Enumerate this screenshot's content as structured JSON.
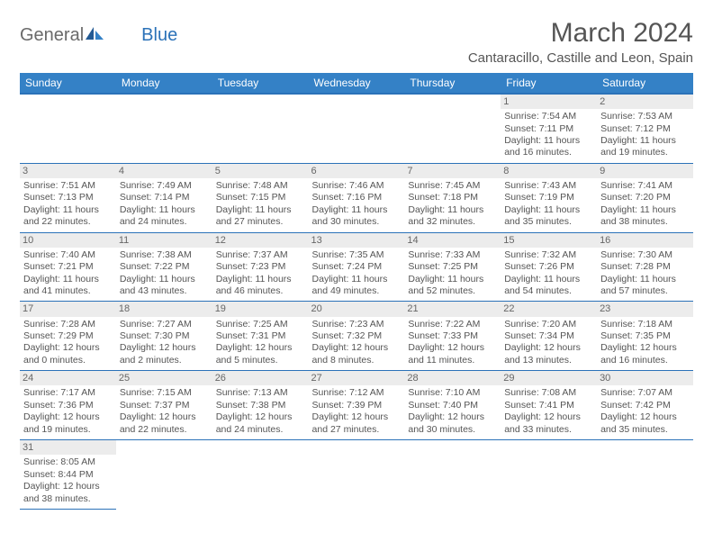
{
  "logo": {
    "part1": "General",
    "part2": "Blue"
  },
  "title": "March 2024",
  "subtitle": "Cantaracillo, Castille and Leon, Spain",
  "colors": {
    "header_bg": "#3481c6",
    "header_border": "#2b72b8",
    "daynum_bg": "#ececec",
    "text": "#555555"
  },
  "weekdays": [
    "Sunday",
    "Monday",
    "Tuesday",
    "Wednesday",
    "Thursday",
    "Friday",
    "Saturday"
  ],
  "weeks": [
    [
      null,
      null,
      null,
      null,
      null,
      {
        "n": "1",
        "sunrise": "Sunrise: 7:54 AM",
        "sunset": "Sunset: 7:11 PM",
        "daylight": "Daylight: 11 hours and 16 minutes."
      },
      {
        "n": "2",
        "sunrise": "Sunrise: 7:53 AM",
        "sunset": "Sunset: 7:12 PM",
        "daylight": "Daylight: 11 hours and 19 minutes."
      }
    ],
    [
      {
        "n": "3",
        "sunrise": "Sunrise: 7:51 AM",
        "sunset": "Sunset: 7:13 PM",
        "daylight": "Daylight: 11 hours and 22 minutes."
      },
      {
        "n": "4",
        "sunrise": "Sunrise: 7:49 AM",
        "sunset": "Sunset: 7:14 PM",
        "daylight": "Daylight: 11 hours and 24 minutes."
      },
      {
        "n": "5",
        "sunrise": "Sunrise: 7:48 AM",
        "sunset": "Sunset: 7:15 PM",
        "daylight": "Daylight: 11 hours and 27 minutes."
      },
      {
        "n": "6",
        "sunrise": "Sunrise: 7:46 AM",
        "sunset": "Sunset: 7:16 PM",
        "daylight": "Daylight: 11 hours and 30 minutes."
      },
      {
        "n": "7",
        "sunrise": "Sunrise: 7:45 AM",
        "sunset": "Sunset: 7:18 PM",
        "daylight": "Daylight: 11 hours and 32 minutes."
      },
      {
        "n": "8",
        "sunrise": "Sunrise: 7:43 AM",
        "sunset": "Sunset: 7:19 PM",
        "daylight": "Daylight: 11 hours and 35 minutes."
      },
      {
        "n": "9",
        "sunrise": "Sunrise: 7:41 AM",
        "sunset": "Sunset: 7:20 PM",
        "daylight": "Daylight: 11 hours and 38 minutes."
      }
    ],
    [
      {
        "n": "10",
        "sunrise": "Sunrise: 7:40 AM",
        "sunset": "Sunset: 7:21 PM",
        "daylight": "Daylight: 11 hours and 41 minutes."
      },
      {
        "n": "11",
        "sunrise": "Sunrise: 7:38 AM",
        "sunset": "Sunset: 7:22 PM",
        "daylight": "Daylight: 11 hours and 43 minutes."
      },
      {
        "n": "12",
        "sunrise": "Sunrise: 7:37 AM",
        "sunset": "Sunset: 7:23 PM",
        "daylight": "Daylight: 11 hours and 46 minutes."
      },
      {
        "n": "13",
        "sunrise": "Sunrise: 7:35 AM",
        "sunset": "Sunset: 7:24 PM",
        "daylight": "Daylight: 11 hours and 49 minutes."
      },
      {
        "n": "14",
        "sunrise": "Sunrise: 7:33 AM",
        "sunset": "Sunset: 7:25 PM",
        "daylight": "Daylight: 11 hours and 52 minutes."
      },
      {
        "n": "15",
        "sunrise": "Sunrise: 7:32 AM",
        "sunset": "Sunset: 7:26 PM",
        "daylight": "Daylight: 11 hours and 54 minutes."
      },
      {
        "n": "16",
        "sunrise": "Sunrise: 7:30 AM",
        "sunset": "Sunset: 7:28 PM",
        "daylight": "Daylight: 11 hours and 57 minutes."
      }
    ],
    [
      {
        "n": "17",
        "sunrise": "Sunrise: 7:28 AM",
        "sunset": "Sunset: 7:29 PM",
        "daylight": "Daylight: 12 hours and 0 minutes."
      },
      {
        "n": "18",
        "sunrise": "Sunrise: 7:27 AM",
        "sunset": "Sunset: 7:30 PM",
        "daylight": "Daylight: 12 hours and 2 minutes."
      },
      {
        "n": "19",
        "sunrise": "Sunrise: 7:25 AM",
        "sunset": "Sunset: 7:31 PM",
        "daylight": "Daylight: 12 hours and 5 minutes."
      },
      {
        "n": "20",
        "sunrise": "Sunrise: 7:23 AM",
        "sunset": "Sunset: 7:32 PM",
        "daylight": "Daylight: 12 hours and 8 minutes."
      },
      {
        "n": "21",
        "sunrise": "Sunrise: 7:22 AM",
        "sunset": "Sunset: 7:33 PM",
        "daylight": "Daylight: 12 hours and 11 minutes."
      },
      {
        "n": "22",
        "sunrise": "Sunrise: 7:20 AM",
        "sunset": "Sunset: 7:34 PM",
        "daylight": "Daylight: 12 hours and 13 minutes."
      },
      {
        "n": "23",
        "sunrise": "Sunrise: 7:18 AM",
        "sunset": "Sunset: 7:35 PM",
        "daylight": "Daylight: 12 hours and 16 minutes."
      }
    ],
    [
      {
        "n": "24",
        "sunrise": "Sunrise: 7:17 AM",
        "sunset": "Sunset: 7:36 PM",
        "daylight": "Daylight: 12 hours and 19 minutes."
      },
      {
        "n": "25",
        "sunrise": "Sunrise: 7:15 AM",
        "sunset": "Sunset: 7:37 PM",
        "daylight": "Daylight: 12 hours and 22 minutes."
      },
      {
        "n": "26",
        "sunrise": "Sunrise: 7:13 AM",
        "sunset": "Sunset: 7:38 PM",
        "daylight": "Daylight: 12 hours and 24 minutes."
      },
      {
        "n": "27",
        "sunrise": "Sunrise: 7:12 AM",
        "sunset": "Sunset: 7:39 PM",
        "daylight": "Daylight: 12 hours and 27 minutes."
      },
      {
        "n": "28",
        "sunrise": "Sunrise: 7:10 AM",
        "sunset": "Sunset: 7:40 PM",
        "daylight": "Daylight: 12 hours and 30 minutes."
      },
      {
        "n": "29",
        "sunrise": "Sunrise: 7:08 AM",
        "sunset": "Sunset: 7:41 PM",
        "daylight": "Daylight: 12 hours and 33 minutes."
      },
      {
        "n": "30",
        "sunrise": "Sunrise: 7:07 AM",
        "sunset": "Sunset: 7:42 PM",
        "daylight": "Daylight: 12 hours and 35 minutes."
      }
    ],
    [
      {
        "n": "31",
        "sunrise": "Sunrise: 8:05 AM",
        "sunset": "Sunset: 8:44 PM",
        "daylight": "Daylight: 12 hours and 38 minutes."
      },
      null,
      null,
      null,
      null,
      null,
      null
    ]
  ]
}
